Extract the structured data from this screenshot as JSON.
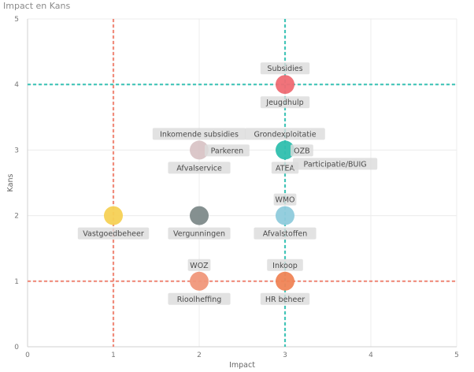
{
  "chart_data": {
    "type": "scatter",
    "title": "Impact en Kans",
    "xlabel": "Impact",
    "ylabel": "Kans",
    "xlim": [
      0,
      5
    ],
    "ylim": [
      0,
      5
    ],
    "xticks": [
      "0",
      "1",
      "2",
      "3",
      "4",
      "5"
    ],
    "yticks": [
      "0",
      "1",
      "2",
      "3",
      "4",
      "5"
    ],
    "grid": true,
    "reference_lines": [
      {
        "axis": "x",
        "value": 1,
        "color": "#f08c7c"
      },
      {
        "axis": "x",
        "value": 3,
        "color": "#42c5b8"
      },
      {
        "axis": "y",
        "value": 4,
        "color": "#42c5b8"
      },
      {
        "axis": "y",
        "value": 1,
        "color": "#f08c7c"
      }
    ],
    "points": [
      {
        "x": 3,
        "y": 4,
        "color": "#ef6b73",
        "labels": [
          {
            "text": "Subsidies",
            "pos": "above"
          },
          {
            "text": "Jeugdhulp",
            "pos": "below"
          }
        ]
      },
      {
        "x": 2,
        "y": 3,
        "color": "#d9c4c6",
        "labels": [
          {
            "text": "Inkomende subsidies",
            "pos": "above"
          },
          {
            "text": "Parkeren",
            "pos": "right"
          },
          {
            "text": "Afvalservice",
            "pos": "below"
          }
        ]
      },
      {
        "x": 3,
        "y": 3,
        "color": "#2fbfae",
        "labels": [
          {
            "text": "Grondexploitatie",
            "pos": "above"
          },
          {
            "text": "OZB",
            "pos": "right"
          },
          {
            "text": "ATEA",
            "pos": "below"
          },
          {
            "text": "Participatie/BUIG",
            "pos": "below-right"
          }
        ]
      },
      {
        "x": 1,
        "y": 2,
        "color": "#f6d155",
        "labels": [
          {
            "text": "Vastgoedbeheer",
            "pos": "below"
          }
        ]
      },
      {
        "x": 2,
        "y": 2,
        "color": "#7e8a8a",
        "labels": [
          {
            "text": "Vergunningen",
            "pos": "below"
          }
        ]
      },
      {
        "x": 3,
        "y": 2,
        "color": "#8fcbdc",
        "labels": [
          {
            "text": "WMO",
            "pos": "above"
          },
          {
            "text": "Afvalstoffen",
            "pos": "below"
          }
        ]
      },
      {
        "x": 2,
        "y": 1,
        "color": "#f0977a",
        "labels": [
          {
            "text": "WOZ",
            "pos": "above"
          },
          {
            "text": "Rioolheffing",
            "pos": "below"
          }
        ]
      },
      {
        "x": 3,
        "y": 1,
        "color": "#ef8456",
        "labels": [
          {
            "text": "Inkoop",
            "pos": "above"
          },
          {
            "text": "HR beheer",
            "pos": "below"
          }
        ]
      }
    ]
  }
}
